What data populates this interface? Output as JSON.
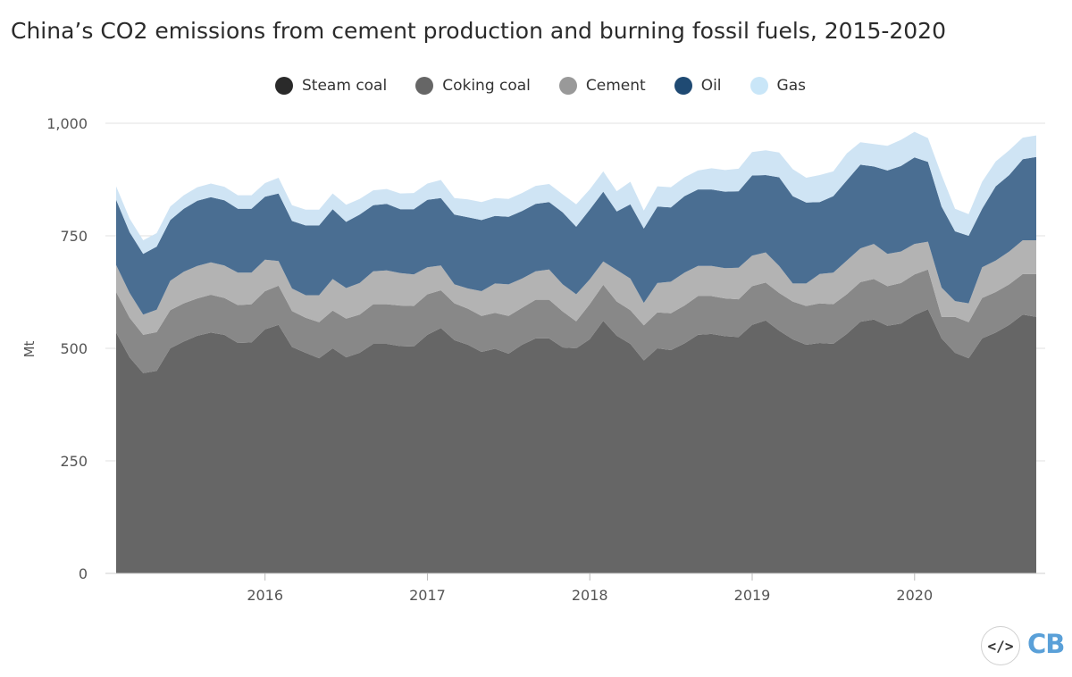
{
  "chart_data": {
    "type": "area",
    "stacked": true,
    "title": "China’s CO2 emissions from cement production and burning fossil fuels, 2015-2020",
    "ylabel": "Mt",
    "xlabel": "",
    "ylim": [
      0,
      1000
    ],
    "yticks": [
      0,
      250,
      500,
      750,
      1000
    ],
    "ytick_labels": [
      "0",
      "250",
      "500",
      "750",
      "1,000"
    ],
    "xtick_labels": [
      "2016",
      "2017",
      "2018",
      "2019",
      "2020"
    ],
    "xtick_positions": [
      2016,
      2017,
      2018,
      2019,
      2020
    ],
    "x_start": 2015.083,
    "x_step": 0.08333,
    "legend_position": "top-center",
    "series": [
      {
        "name": "Steam coal",
        "color": "#666666",
        "legend_color": "#2a2a2a",
        "values": [
          535,
          480,
          445,
          450,
          500,
          515,
          528,
          535,
          530,
          512,
          513,
          542,
          552,
          503,
          490,
          478,
          500,
          480,
          490,
          510,
          510,
          505,
          504,
          530,
          545,
          518,
          508,
          492,
          499,
          488,
          508,
          522,
          522,
          502,
          500,
          520,
          561,
          528,
          510,
          473,
          500,
          496,
          511,
          530,
          532,
          527,
          525,
          552,
          562,
          539,
          520,
          508,
          512,
          510,
          532,
          559,
          564,
          550,
          555,
          574,
          587,
          522,
          490,
          478,
          522,
          535,
          552,
          575,
          570
        ]
      },
      {
        "name": "Coking coal",
        "color": "#888888",
        "legend_color": "#666666",
        "values": [
          90,
          88,
          85,
          86,
          85,
          85,
          83,
          84,
          82,
          84,
          85,
          85,
          87,
          80,
          78,
          80,
          84,
          86,
          85,
          88,
          88,
          90,
          90,
          90,
          84,
          82,
          80,
          80,
          80,
          84,
          82,
          86,
          86,
          80,
          60,
          78,
          80,
          76,
          75,
          78,
          80,
          82,
          84,
          86,
          84,
          84,
          84,
          86,
          84,
          84,
          84,
          86,
          88,
          88,
          88,
          88,
          90,
          88,
          90,
          90,
          88,
          48,
          80,
          80,
          90,
          90,
          90,
          90,
          95
        ]
      },
      {
        "name": "Cement",
        "color": "#b3b3b3",
        "legend_color": "#999999",
        "values": [
          60,
          55,
          45,
          50,
          65,
          70,
          72,
          72,
          72,
          72,
          70,
          70,
          55,
          50,
          50,
          60,
          70,
          68,
          70,
          73,
          75,
          72,
          70,
          60,
          55,
          42,
          45,
          55,
          65,
          70,
          65,
          63,
          67,
          60,
          60,
          55,
          52,
          70,
          70,
          50,
          65,
          70,
          73,
          67,
          67,
          67,
          70,
          68,
          67,
          60,
          40,
          50,
          65,
          70,
          75,
          75,
          78,
          72,
          70,
          68,
          62,
          65,
          35,
          42,
          68,
          70,
          73,
          75,
          75
        ]
      },
      {
        "name": "Oil",
        "color": "#4a6e92",
        "legend_color": "#1f4a73",
        "values": [
          145,
          135,
          135,
          140,
          135,
          140,
          145,
          145,
          145,
          142,
          142,
          140,
          150,
          150,
          155,
          155,
          155,
          147,
          152,
          147,
          148,
          142,
          145,
          150,
          150,
          155,
          158,
          158,
          150,
          150,
          150,
          150,
          150,
          160,
          150,
          155,
          155,
          130,
          165,
          165,
          170,
          165,
          170,
          170,
          170,
          170,
          170,
          178,
          172,
          197,
          194,
          180,
          160,
          170,
          178,
          186,
          172,
          185,
          190,
          192,
          177,
          180,
          155,
          150,
          130,
          165,
          170,
          180,
          185
        ]
      },
      {
        "name": "Gas",
        "color": "#cfe4f4",
        "legend_color": "#c9e6f8",
        "values": [
          30,
          30,
          30,
          30,
          30,
          30,
          30,
          30,
          30,
          30,
          30,
          30,
          35,
          35,
          35,
          35,
          35,
          38,
          35,
          33,
          33,
          35,
          36,
          36,
          40,
          37,
          40,
          40,
          40,
          40,
          40,
          40,
          40,
          40,
          50,
          45,
          45,
          45,
          50,
          40,
          45,
          45,
          42,
          42,
          47,
          48,
          50,
          52,
          55,
          55,
          60,
          55,
          60,
          55,
          60,
          50,
          50,
          55,
          58,
          57,
          53,
          70,
          50,
          48,
          60,
          55,
          55,
          48,
          48
        ]
      }
    ]
  },
  "branding": {
    "embed_icon": "code-icon",
    "embed_glyph": "</>",
    "logo_text": "CB"
  }
}
